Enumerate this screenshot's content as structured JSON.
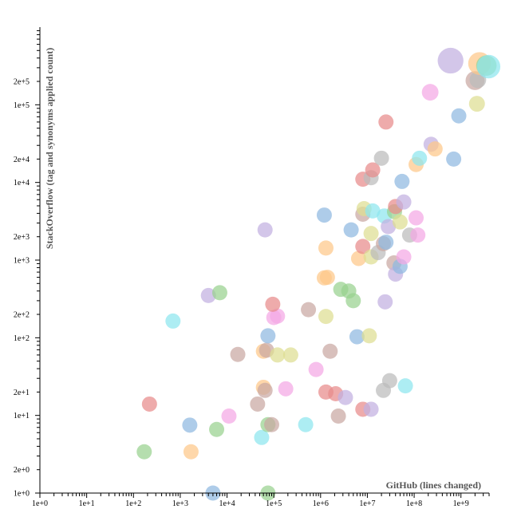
{
  "chart_data": {
    "type": "scatter",
    "xlabel": "GitHub (lines changed)",
    "ylabel": "StackOverflow (tag and synonyms applied count)",
    "x_scale": "log",
    "y_scale": "log",
    "xlim": [
      1,
      4000000000
    ],
    "ylim": [
      1,
      1000000
    ],
    "x_tick_labels": [
      {
        "value": 1,
        "label": "1e+0"
      },
      {
        "value": 10,
        "label": "1e+1"
      },
      {
        "value": 100,
        "label": "1e+2"
      },
      {
        "value": 1000,
        "label": "1e+3"
      },
      {
        "value": 10000,
        "label": "1e+4"
      },
      {
        "value": 100000,
        "label": "1e+5"
      },
      {
        "value": 1000000,
        "label": "1e+6"
      },
      {
        "value": 10000000,
        "label": "1e+7"
      },
      {
        "value": 100000000,
        "label": "1e+8"
      },
      {
        "value": 1000000000,
        "label": "1e+9"
      }
    ],
    "y_tick_labels": [
      {
        "value": 1,
        "label": "1e+0"
      },
      {
        "value": 2,
        "label": "2e+0"
      },
      {
        "value": 10,
        "label": "1e+1"
      },
      {
        "value": 20,
        "label": "2e+1"
      },
      {
        "value": 100,
        "label": "1e+2"
      },
      {
        "value": 200,
        "label": "2e+2"
      },
      {
        "value": 1000,
        "label": "1e+3"
      },
      {
        "value": 2000,
        "label": "2e+3"
      },
      {
        "value": 10000,
        "label": "1e+4"
      },
      {
        "value": 20000,
        "label": "2e+4"
      },
      {
        "value": 100000,
        "label": "1e+5"
      },
      {
        "value": 200000,
        "label": "2e+5"
      }
    ],
    "colors": {
      "blue": "#8fb9e0",
      "orange": "#fdc889",
      "green": "#98d18f",
      "red": "#e88a8a",
      "purple": "#c2b0e0",
      "brown": "#c9a8a2",
      "pink": "#f4a8e4",
      "gray": "#bbbbbb",
      "olive": "#dede91",
      "cyan": "#8ee6ee"
    },
    "points": [
      {
        "x": 5000,
        "y": 1,
        "color": "blue",
        "size": 1
      },
      {
        "x": 75000,
        "y": 1,
        "color": "green",
        "size": 1
      },
      {
        "x": 170,
        "y": 3.4,
        "color": "green",
        "size": 1
      },
      {
        "x": 1700,
        "y": 3.4,
        "color": "orange",
        "size": 1
      },
      {
        "x": 55000,
        "y": 5.2,
        "color": "cyan",
        "size": 1
      },
      {
        "x": 1600,
        "y": 7.5,
        "color": "blue",
        "size": 1
      },
      {
        "x": 6000,
        "y": 6.6,
        "color": "green",
        "size": 1
      },
      {
        "x": 75000,
        "y": 7.6,
        "color": "green",
        "size": 1
      },
      {
        "x": 90000,
        "y": 7.6,
        "color": "brown",
        "size": 1
      },
      {
        "x": 480000,
        "y": 7.6,
        "color": "cyan",
        "size": 1
      },
      {
        "x": 11000,
        "y": 9.8,
        "color": "pink",
        "size": 1
      },
      {
        "x": 2400000,
        "y": 9.8,
        "color": "brown",
        "size": 1
      },
      {
        "x": 220,
        "y": 14,
        "color": "red",
        "size": 1
      },
      {
        "x": 45000,
        "y": 14,
        "color": "brown",
        "size": 1
      },
      {
        "x": 8000000,
        "y": 12,
        "color": "red",
        "size": 1
      },
      {
        "x": 12000000,
        "y": 12,
        "color": "purple",
        "size": 1
      },
      {
        "x": 60000,
        "y": 23,
        "color": "orange",
        "size": 1
      },
      {
        "x": 65000,
        "y": 21,
        "color": "brown",
        "size": 1
      },
      {
        "x": 180000,
        "y": 22,
        "color": "pink",
        "size": 1
      },
      {
        "x": 1300000,
        "y": 20,
        "color": "red",
        "size": 1
      },
      {
        "x": 2100000,
        "y": 19,
        "color": "red",
        "size": 1
      },
      {
        "x": 3400000,
        "y": 17,
        "color": "purple",
        "size": 1
      },
      {
        "x": 22000000,
        "y": 21,
        "color": "gray",
        "size": 1
      },
      {
        "x": 30000000,
        "y": 28,
        "color": "gray",
        "size": 1
      },
      {
        "x": 65000000,
        "y": 24,
        "color": "cyan",
        "size": 1
      },
      {
        "x": 800000,
        "y": 39,
        "color": "pink",
        "size": 1
      },
      {
        "x": 17000,
        "y": 61,
        "color": "brown",
        "size": 1
      },
      {
        "x": 60000,
        "y": 67,
        "color": "orange",
        "size": 1
      },
      {
        "x": 70000,
        "y": 69,
        "color": "brown",
        "size": 1
      },
      {
        "x": 120000,
        "y": 60,
        "color": "olive",
        "size": 1
      },
      {
        "x": 230000,
        "y": 60,
        "color": "olive",
        "size": 1
      },
      {
        "x": 1600000,
        "y": 67,
        "color": "brown",
        "size": 1
      },
      {
        "x": 75000,
        "y": 106,
        "color": "blue",
        "size": 1
      },
      {
        "x": 6000000,
        "y": 103,
        "color": "blue",
        "size": 1
      },
      {
        "x": 11000000,
        "y": 106,
        "color": "olive",
        "size": 1
      },
      {
        "x": 700,
        "y": 164,
        "color": "cyan",
        "size": 1
      },
      {
        "x": 100000,
        "y": 182,
        "color": "pink",
        "size": 1
      },
      {
        "x": 120000,
        "y": 190,
        "color": "pink",
        "size": 1
      },
      {
        "x": 1300000,
        "y": 188,
        "color": "olive",
        "size": 1
      },
      {
        "x": 550000,
        "y": 230,
        "color": "brown",
        "size": 1
      },
      {
        "x": 95000,
        "y": 270,
        "color": "red",
        "size": 1
      },
      {
        "x": 4000,
        "y": 350,
        "color": "purple",
        "size": 1
      },
      {
        "x": 7000,
        "y": 380,
        "color": "green",
        "size": 1
      },
      {
        "x": 2700000,
        "y": 420,
        "color": "green",
        "size": 1
      },
      {
        "x": 4000000,
        "y": 400,
        "color": "green",
        "size": 1
      },
      {
        "x": 5000000,
        "y": 300,
        "color": "green",
        "size": 1
      },
      {
        "x": 24000000,
        "y": 290,
        "color": "purple",
        "size": 1
      },
      {
        "x": 1200000,
        "y": 590,
        "color": "orange",
        "size": 1
      },
      {
        "x": 1400000,
        "y": 600,
        "color": "orange",
        "size": 1
      },
      {
        "x": 1300000,
        "y": 1430,
        "color": "orange",
        "size": 1
      },
      {
        "x": 6500000,
        "y": 1050,
        "color": "orange",
        "size": 1
      },
      {
        "x": 8000000,
        "y": 1500,
        "color": "red",
        "size": 1
      },
      {
        "x": 12000000,
        "y": 1100,
        "color": "olive",
        "size": 1
      },
      {
        "x": 17000000,
        "y": 1250,
        "color": "gray",
        "size": 1
      },
      {
        "x": 22000000,
        "y": 1630,
        "color": "brown",
        "size": 1
      },
      {
        "x": 25000000,
        "y": 1700,
        "color": "blue",
        "size": 1
      },
      {
        "x": 37000000,
        "y": 920,
        "color": "brown",
        "size": 1
      },
      {
        "x": 40000000,
        "y": 660,
        "color": "purple",
        "size": 1
      },
      {
        "x": 50000000,
        "y": 830,
        "color": "blue",
        "size": 1
      },
      {
        "x": 60000000,
        "y": 1100,
        "color": "pink",
        "size": 1
      },
      {
        "x": 65000,
        "y": 2450,
        "color": "purple",
        "size": 1
      },
      {
        "x": 4500000,
        "y": 2450,
        "color": "blue",
        "size": 1
      },
      {
        "x": 12000000,
        "y": 2200,
        "color": "olive",
        "size": 1
      },
      {
        "x": 23000000,
        "y": 3700,
        "color": "cyan",
        "size": 1
      },
      {
        "x": 28000000,
        "y": 2700,
        "color": "purple",
        "size": 1
      },
      {
        "x": 38000000,
        "y": 4200,
        "color": "green",
        "size": 1
      },
      {
        "x": 50000000,
        "y": 3100,
        "color": "olive",
        "size": 1
      },
      {
        "x": 80000000,
        "y": 2100,
        "color": "gray",
        "size": 1
      },
      {
        "x": 120000000,
        "y": 2100,
        "color": "pink",
        "size": 1
      },
      {
        "x": 110000000,
        "y": 3500,
        "color": "pink",
        "size": 1
      },
      {
        "x": 1200000,
        "y": 3800,
        "color": "blue",
        "size": 1
      },
      {
        "x": 8000000,
        "y": 3900,
        "color": "brown",
        "size": 1
      },
      {
        "x": 8500000,
        "y": 4600,
        "color": "olive",
        "size": 1
      },
      {
        "x": 13000000,
        "y": 4300,
        "color": "cyan",
        "size": 1
      },
      {
        "x": 40000000,
        "y": 4900,
        "color": "red",
        "size": 1
      },
      {
        "x": 60000000,
        "y": 5600,
        "color": "purple",
        "size": 1
      },
      {
        "x": 8000000,
        "y": 11000,
        "color": "red",
        "size": 1
      },
      {
        "x": 12000000,
        "y": 11500,
        "color": "gray",
        "size": 1
      },
      {
        "x": 13000000,
        "y": 14500,
        "color": "red",
        "size": 1
      },
      {
        "x": 55000000,
        "y": 10300,
        "color": "blue",
        "size": 1
      },
      {
        "x": 20000000,
        "y": 20500,
        "color": "gray",
        "size": 1
      },
      {
        "x": 110000000,
        "y": 17000,
        "color": "orange",
        "size": 1
      },
      {
        "x": 130000000,
        "y": 20500,
        "color": "cyan",
        "size": 1
      },
      {
        "x": 230000000,
        "y": 31000,
        "color": "purple",
        "size": 1
      },
      {
        "x": 280000000,
        "y": 27000,
        "color": "orange",
        "size": 1
      },
      {
        "x": 700000000,
        "y": 20000,
        "color": "blue",
        "size": 1
      },
      {
        "x": 25000000,
        "y": 60000,
        "color": "red",
        "size": 1
      },
      {
        "x": 900000000,
        "y": 72000,
        "color": "blue",
        "size": 1
      },
      {
        "x": 220000000,
        "y": 145000,
        "color": "pink",
        "size": 1.1
      },
      {
        "x": 2200000000,
        "y": 103000,
        "color": "olive",
        "size": 1.05
      },
      {
        "x": 2000000000,
        "y": 205000,
        "color": "brown",
        "size": 1.25
      },
      {
        "x": 2300000000,
        "y": 210000,
        "color": "gray",
        "size": 1.1
      },
      {
        "x": 600000000,
        "y": 370000,
        "color": "purple",
        "size": 1.7
      },
      {
        "x": 2500000000,
        "y": 340000,
        "color": "orange",
        "size": 1.5
      },
      {
        "x": 3500000000,
        "y": 320000,
        "color": "green",
        "size": 1.35
      },
      {
        "x": 3900000000,
        "y": 310000,
        "color": "cyan",
        "size": 1.55
      }
    ]
  }
}
